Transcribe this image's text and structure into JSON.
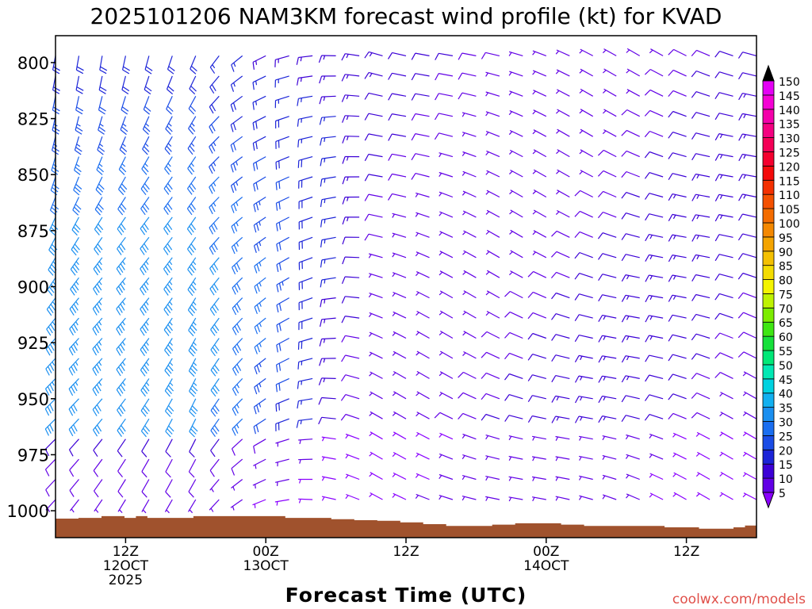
{
  "chart_data": {
    "type": "wind-barb time-height",
    "title": "2025101206 NAM3KM forecast wind profile (kt) for KVAD",
    "xlabel": "Forecast Time (UTC)",
    "ylabel": "",
    "y_axis": {
      "reversed": true,
      "ylim": [
        1012,
        788
      ],
      "ticks": [
        800,
        825,
        850,
        875,
        900,
        925,
        950,
        975,
        1000
      ]
    },
    "x_axis": {
      "unit": "forecast hour",
      "xlim": [
        0,
        60
      ],
      "ticks": [
        {
          "hour": 6,
          "line1": "12Z",
          "line2": "12OCT",
          "line3": "2025"
        },
        {
          "hour": 18,
          "line1": "00Z",
          "line2": "13OCT",
          "line3": ""
        },
        {
          "hour": 30,
          "line1": "12Z",
          "line2": "",
          "line3": ""
        },
        {
          "hour": 42,
          "line1": "00Z",
          "line2": "14OCT",
          "line3": ""
        },
        {
          "hour": 54,
          "line1": "12Z",
          "line2": "",
          "line3": ""
        }
      ]
    },
    "colorbar": {
      "levels": [
        5,
        10,
        15,
        20,
        25,
        30,
        35,
        40,
        45,
        50,
        55,
        60,
        65,
        70,
        75,
        80,
        85,
        90,
        95,
        100,
        105,
        110,
        115,
        120,
        125,
        130,
        135,
        140,
        145,
        150
      ],
      "colors": [
        "#8a00ff",
        "#6200e6",
        "#3c00d6",
        "#1c24d8",
        "#1a4ce6",
        "#1a6ef0",
        "#1a8ff0",
        "#12b0f0",
        "#00d2e0",
        "#00e8b4",
        "#00e878",
        "#16e03a",
        "#3ee612",
        "#7cec00",
        "#bef200",
        "#f4f400",
        "#f4dc00",
        "#f4c000",
        "#f4a400",
        "#f48800",
        "#f46c00",
        "#f45000",
        "#f43000",
        "#f40a0a",
        "#f4002e",
        "#f40056",
        "#f40080",
        "#f400aa",
        "#f400d4",
        "#e400f4"
      ],
      "under_color": "#8a00ff",
      "over_color": "#000000"
    },
    "terrain": {
      "color": "#a0522d",
      "surface_pressure_hpa": [
        1003.5,
        1003.5,
        1003.2,
        1003.2,
        1002.4,
        1002.4,
        1003.2,
        1002.4,
        1003.2,
        1003.2,
        1003.2,
        1003.2,
        1002.4,
        1002.4,
        1002.4,
        1002.4,
        1002.4,
        1002.4,
        1002.4,
        1002.4,
        1003.2,
        1003.2,
        1003.2,
        1003.2,
        1003.8,
        1003.8,
        1004.2,
        1004.2,
        1004.5,
        1004.5,
        1005.2,
        1005.2,
        1006.0,
        1006.0,
        1006.8,
        1006.8,
        1006.8,
        1006.8,
        1006.2,
        1006.2,
        1005.6,
        1005.6,
        1005.6,
        1005.6,
        1006.2,
        1006.2,
        1006.8,
        1006.8,
        1006.8,
        1006.8,
        1006.8,
        1006.8,
        1006.8,
        1007.4,
        1007.4,
        1007.4,
        1008.0,
        1008.0,
        1008.0,
        1007.4,
        1006.6
      ]
    },
    "barb_levels_hpa": [
      797,
      806,
      815,
      824,
      833,
      842,
      851,
      860,
      869,
      878,
      887,
      896,
      905,
      914,
      923,
      932,
      941,
      950,
      959,
      968,
      977,
      986,
      995
    ],
    "barb_hours": [
      0,
      2,
      4,
      6,
      8,
      10,
      12,
      14,
      16,
      18,
      20,
      22,
      24,
      26,
      28,
      30,
      32,
      34,
      36,
      38,
      40,
      42,
      44,
      46,
      48,
      50,
      52,
      54,
      56,
      58,
      60
    ],
    "wind_field_summary": [
      {
        "hours": "0-12",
        "levels": "800-950",
        "direction": "from S-SW",
        "speed_kt": "20-35"
      },
      {
        "hours": "12-24",
        "levels": "800-925",
        "direction": "from SW",
        "speed_kt": "15-25"
      },
      {
        "hours": "24-60",
        "levels": "800-975",
        "direction": "from W-NW",
        "speed_kt": "5-15"
      }
    ],
    "credit": "coolwx.com/models"
  }
}
